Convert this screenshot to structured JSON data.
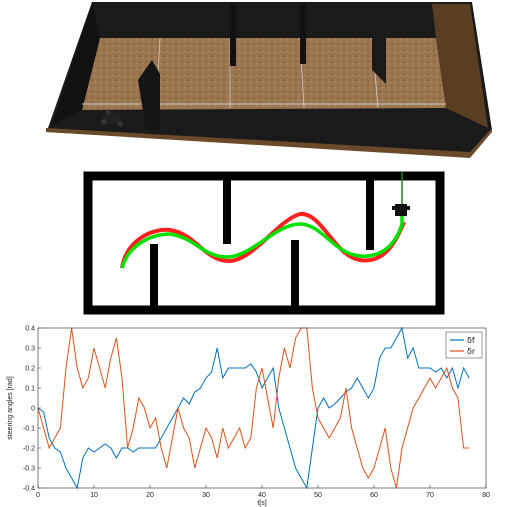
{
  "chart_data": {
    "type": "line",
    "xlabel": "t[s]",
    "ylabel": "steering angles [rad]",
    "xlim": [
      0,
      80
    ],
    "ylim": [
      -0.4,
      0.4
    ],
    "xticks": [
      "0",
      "10",
      "20",
      "30",
      "40",
      "50",
      "60",
      "70",
      "80"
    ],
    "yticks": [
      "0.4",
      "0.3",
      "0.2",
      "0.1",
      "0",
      "-0.1",
      "-0.2",
      "-0.3",
      "-0.4"
    ],
    "grid": false,
    "legend_position": "top-right",
    "series": [
      {
        "name": "δf",
        "color": "#0072BD",
        "x": [
          0,
          1,
          2,
          3,
          4,
          5,
          6,
          7,
          8,
          9,
          10,
          11,
          12,
          13,
          14,
          15,
          16,
          17,
          18,
          19,
          20,
          21,
          22,
          23,
          24,
          25,
          26,
          27,
          28,
          29,
          30,
          31,
          32,
          33,
          34,
          35,
          36,
          37,
          38,
          39,
          40,
          41,
          42,
          43,
          44,
          45,
          46,
          47,
          48,
          49,
          50,
          51,
          52,
          53,
          54,
          55,
          56,
          57,
          58,
          59,
          60,
          61,
          62,
          63,
          64,
          65,
          66,
          67,
          68,
          69,
          70,
          71,
          72,
          73,
          74,
          75,
          76,
          77
        ],
        "values": [
          0,
          -0.02,
          -0.15,
          -0.2,
          -0.22,
          -0.3,
          -0.35,
          -0.4,
          -0.25,
          -0.2,
          -0.22,
          -0.2,
          -0.18,
          -0.2,
          -0.25,
          -0.2,
          -0.2,
          -0.22,
          -0.2,
          -0.2,
          -0.2,
          -0.2,
          -0.15,
          -0.1,
          -0.05,
          0.0,
          0.05,
          0.02,
          0.08,
          0.1,
          0.15,
          0.18,
          0.3,
          0.15,
          0.2,
          0.2,
          0.2,
          0.2,
          0.22,
          0.18,
          0.1,
          0.15,
          0.2,
          0.0,
          -0.1,
          -0.2,
          -0.3,
          -0.35,
          -0.4,
          -0.2,
          0.0,
          0.05,
          0.0,
          0.02,
          0.05,
          0.08,
          0.1,
          0.15,
          0.1,
          0.05,
          0.1,
          0.25,
          0.3,
          0.3,
          0.35,
          0.4,
          0.25,
          0.3,
          0.2,
          0.2,
          0.2,
          0.18,
          0.2,
          0.15,
          0.2,
          0.1,
          0.2,
          0.15
        ]
      },
      {
        "name": "δr",
        "color": "#D95319",
        "x": [
          0,
          1,
          2,
          3,
          4,
          5,
          6,
          7,
          8,
          9,
          10,
          11,
          12,
          13,
          14,
          15,
          16,
          17,
          18,
          19,
          20,
          21,
          22,
          23,
          24,
          25,
          26,
          27,
          28,
          29,
          30,
          31,
          32,
          33,
          34,
          35,
          36,
          37,
          38,
          39,
          40,
          41,
          42,
          43,
          44,
          45,
          46,
          47,
          48,
          49,
          50,
          51,
          52,
          53,
          54,
          55,
          56,
          57,
          58,
          59,
          60,
          61,
          62,
          63,
          64,
          65,
          66,
          67,
          68,
          69,
          70,
          71,
          72,
          73,
          74,
          75,
          76,
          77
        ],
        "values": [
          0,
          -0.1,
          -0.2,
          -0.15,
          -0.1,
          0.2,
          0.4,
          0.2,
          0.1,
          0.15,
          0.3,
          0.2,
          0.1,
          0.25,
          0.35,
          0.15,
          -0.2,
          -0.1,
          0.05,
          0.0,
          -0.1,
          -0.05,
          -0.2,
          -0.3,
          -0.15,
          0.0,
          -0.1,
          -0.15,
          -0.3,
          -0.2,
          -0.1,
          -0.15,
          -0.25,
          -0.1,
          -0.2,
          -0.15,
          -0.1,
          -0.2,
          -0.15,
          0.1,
          0.2,
          0.05,
          -0.1,
          0.15,
          0.3,
          0.2,
          0.35,
          0.4,
          0.4,
          0.1,
          -0.05,
          -0.1,
          -0.15,
          -0.1,
          -0.05,
          0.1,
          -0.1,
          -0.2,
          -0.3,
          -0.35,
          -0.3,
          -0.2,
          -0.1,
          -0.3,
          -0.4,
          -0.2,
          -0.1,
          0.0,
          0.05,
          0.1,
          0.15,
          0.1,
          0.15,
          0.2,
          0.1,
          0.05,
          -0.2,
          -0.2
        ]
      }
    ]
  },
  "scene": {
    "floor_color": "#9a7550",
    "wall_color": "#1c1c1c",
    "rim_color": "#6b4a2b"
  },
  "map": {
    "wall_color": "#000000",
    "reference_path_color": "#00e000",
    "actual_path_color": "#ff2020"
  }
}
